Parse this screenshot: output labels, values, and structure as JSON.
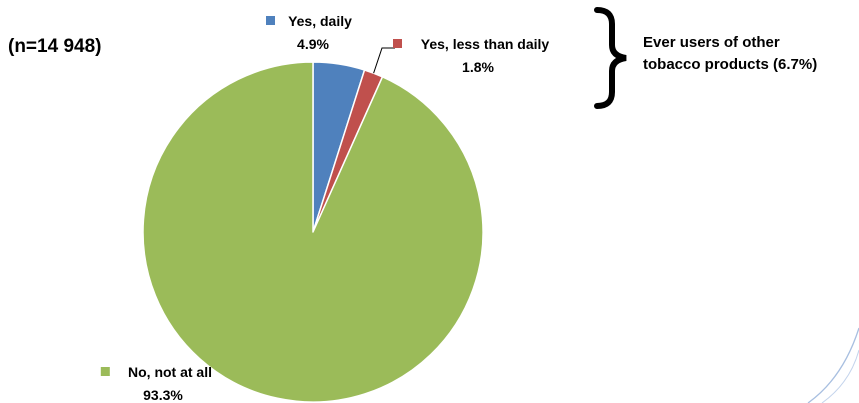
{
  "chart_data": {
    "type": "pie",
    "title": "",
    "sample_note": "(n=14 948)",
    "slices": [
      {
        "label": "Yes, daily",
        "value": 4.9,
        "value_label": "4.9%",
        "color": "#4f81bd"
      },
      {
        "label": "Yes, less than daily",
        "value": 1.8,
        "value_label": "1.8%",
        "color": "#c0504d"
      },
      {
        "label": "No, not at all",
        "value": 93.3,
        "value_label": "93.3%",
        "color": "#9bbb59"
      }
    ],
    "annotation": {
      "lines": [
        "Ever users of other",
        "tobacco products (6.7%)"
      ]
    },
    "start_angle": "12 o'clock",
    "direction": "clockwise"
  }
}
